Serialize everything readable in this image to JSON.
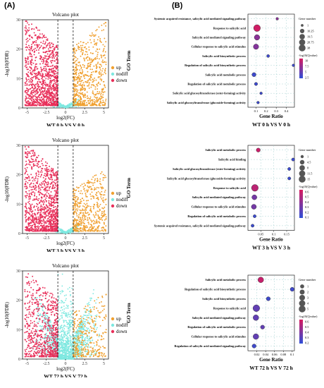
{
  "panel_labels": {
    "a": "(A)",
    "b": "(B)"
  },
  "colors": {
    "up": "#f0a030",
    "nodiff": "#7ee8e0",
    "down": "#e8305a",
    "bubble_high": "#d81b60",
    "bubble_low": "#2f4fd8"
  },
  "chart_data": [
    {
      "type": "scatter",
      "title": "Volcano plot",
      "caption": "WT 0 h VS V 0 h",
      "xlabel": "log2(FC)",
      "ylabel": "-log10(FDR)",
      "xlim": [
        -5.6,
        5.6
      ],
      "ylim": [
        0,
        30
      ],
      "xticks": [
        -5,
        -2.5,
        0,
        2.5,
        5
      ],
      "yticks": [
        0,
        10,
        20,
        30
      ],
      "thresholds": {
        "fc": 1
      },
      "legend": [
        "up",
        "nodiff",
        "down"
      ],
      "approx_counts": {
        "down": 1150,
        "up": 650,
        "nodiff": 260
      },
      "max_y": {
        "down": 29.5,
        "up": 29
      }
    },
    {
      "type": "bubble",
      "caption": "WT 0 h VS V 0 h",
      "ylabel": "GO Term",
      "xlabel": "Gene Ratio",
      "xlim": [
        0.02,
        0.48
      ],
      "xticks": [
        0.1,
        0.2,
        0.3,
        0.4
      ],
      "size_legend_title": "Gene number",
      "size_legend": [
        1,
        10.25,
        19.5,
        28.75,
        38
      ],
      "color_legend_title": "-log10(Qvalue)",
      "color_legend": [
        10,
        7.5,
        5,
        2.5
      ],
      "color_range": [
        0,
        11
      ],
      "terms": [
        {
          "term": "Systemic acquired resistance, salicylic acid mediated signaling pathway",
          "ratio": 0.31,
          "count": 1,
          "q": 6
        },
        {
          "term": "Response to salicylic acid",
          "ratio": 0.11,
          "count": 38,
          "q": 10.5
        },
        {
          "term": "Salicylic acid mediated signaling pathway",
          "ratio": 0.11,
          "count": 20,
          "q": 6
        },
        {
          "term": "Cellular response to salicylic acid stimulus",
          "ratio": 0.1,
          "count": 19,
          "q": 5.5
        },
        {
          "term": "Salicylic acid biosynthetic process",
          "ratio": 0.22,
          "count": 2,
          "q": 1
        },
        {
          "term": "Regulation of salicylic acid biosynthetic process",
          "ratio": 0.47,
          "count": 1,
          "q": 1
        },
        {
          "term": "Salicylic acid metabolic process",
          "ratio": 0.08,
          "count": 8,
          "q": 1
        },
        {
          "term": "Regulation of salicylic acid metabolic process",
          "ratio": 0.1,
          "count": 3,
          "q": 1
        },
        {
          "term": "Salicylic acid glucosyltransferase (ester-forming) activity",
          "ratio": 0.15,
          "count": 1,
          "q": 1
        },
        {
          "term": "Salicylic acid glucosyltransferase (glucoside-forming) activity",
          "ratio": 0.12,
          "count": 1,
          "q": 1
        }
      ]
    },
    {
      "type": "scatter",
      "title": "Volcano plot",
      "caption": "WT 3 h VS V 3 h",
      "xlabel": "log2(FC)",
      "ylabel": "-log10(FDR)",
      "xlim": [
        -5.6,
        5.6
      ],
      "ylim": [
        0,
        30
      ],
      "xticks": [
        -5,
        -2.5,
        0,
        2.5,
        5
      ],
      "yticks": [
        0,
        10,
        20,
        30
      ],
      "thresholds": {
        "fc": 1
      },
      "legend": [
        "up",
        "nodiff",
        "down"
      ],
      "approx_counts": {
        "down": 1100,
        "up": 520,
        "nodiff": 240
      },
      "max_y": {
        "down": 29.5,
        "up": 21
      }
    },
    {
      "type": "bubble",
      "caption": "WT 3 h VS V 3 h",
      "ylabel": "GO Term",
      "xlabel": "Gene Ratio",
      "xlim": [
        0.0,
        0.18
      ],
      "xticks": [
        0.05,
        0.1,
        0.15
      ],
      "size_legend_title": "Gene number",
      "size_legend": [
        1,
        4.5,
        8,
        11.5,
        15
      ],
      "color_legend_title": "-log10(Qvalue)",
      "color_legend": [
        0.6,
        0.5,
        0.4,
        0.3,
        0.2,
        0.1
      ],
      "color_range": [
        0.05,
        0.65
      ],
      "terms": [
        {
          "term": "Salicylic acid metabolic process",
          "ratio": 0.04,
          "count": 3,
          "q": 0.6
        },
        {
          "term": "Salicylic acid binding",
          "ratio": 0.175,
          "count": 1,
          "q": 0.1
        },
        {
          "term": "Salicylic acid glucosyltransferase (ester-forming) activity",
          "ratio": 0.16,
          "count": 1,
          "q": 0.1
        },
        {
          "term": "Salicylic acid glucosyltransferase (glucoside-forming) activity",
          "ratio": 0.16,
          "count": 1,
          "q": 0.1
        },
        {
          "term": "Response to salicylic acid",
          "ratio": 0.027,
          "count": 15,
          "q": 0.55
        },
        {
          "term": "Salicylic acid mediated signaling pathway",
          "ratio": 0.025,
          "count": 6,
          "q": 0.3
        },
        {
          "term": "Cellular response to salicylic acid stimulus",
          "ratio": 0.023,
          "count": 6,
          "q": 0.3
        },
        {
          "term": "Regulation of salicylic acid metabolic process",
          "ratio": 0.026,
          "count": 1,
          "q": 0.1
        },
        {
          "term": "Systemic acquired resistance, salicylic acid mediated signaling pathway",
          "ratio": 0.018,
          "count": 1,
          "q": 0.1
        }
      ]
    },
    {
      "type": "scatter",
      "title": "Volcano plot",
      "caption": "WT 72 h VS V 72 h",
      "xlabel": "log2(FC)",
      "ylabel": "-log10(FDR)",
      "xlim": [
        -5.6,
        5.6
      ],
      "ylim": [
        0,
        30
      ],
      "xticks": [
        -5,
        -2.5,
        0,
        2.5,
        5
      ],
      "yticks": [
        0,
        10,
        20,
        30
      ],
      "thresholds": {
        "fc": 1
      },
      "legend": [
        "up",
        "nodiff",
        "down"
      ],
      "approx_counts": {
        "down": 700,
        "up": 300,
        "nodiff": 1500
      },
      "max_y": {
        "down": 29,
        "up": 22
      }
    },
    {
      "type": "bubble",
      "caption": "WT 72 h VS V 72 h",
      "ylabel": "GO Term",
      "xlabel": "Gene Ratio",
      "xlim": [
        0.0,
        0.105
      ],
      "xticks": [
        0.02,
        0.04,
        0.06,
        0.08,
        0.1
      ],
      "size_legend_title": "Gene number",
      "size_legend": [
        1,
        2,
        3,
        4,
        5
      ],
      "color_legend_title": "-log10(Qvalue)",
      "color_legend": [
        0.6,
        0.5,
        0.4,
        0.3,
        0.2
      ],
      "color_range": [
        0.15,
        0.65
      ],
      "terms": [
        {
          "term": "Salicylic acid metabolic process",
          "ratio": 0.029,
          "count": 3,
          "q": 0.6
        },
        {
          "term": "Regulation of salicylic acid biosynthetic process",
          "ratio": 0.1,
          "count": 1,
          "q": 0.2
        },
        {
          "term": "Salicylic acid biosynthetic process",
          "ratio": 0.046,
          "count": 1,
          "q": 0.2
        },
        {
          "term": "Response to salicylic acid",
          "ratio": 0.019,
          "count": 5,
          "q": 0.3
        },
        {
          "term": "Salicylic acid mediated signaling pathway",
          "ratio": 0.018,
          "count": 3,
          "q": 0.3
        },
        {
          "term": "Regulation of salicylic acid metabolic process",
          "ratio": 0.033,
          "count": 1,
          "q": 0.3
        },
        {
          "term": "Cellular response to salicylic acid stimulus",
          "ratio": 0.018,
          "count": 3,
          "q": 0.3
        },
        {
          "term": "Regulation of salicylic acid mediated signaling pathway",
          "ratio": 0.014,
          "count": 1,
          "q": 0.2
        }
      ]
    }
  ]
}
